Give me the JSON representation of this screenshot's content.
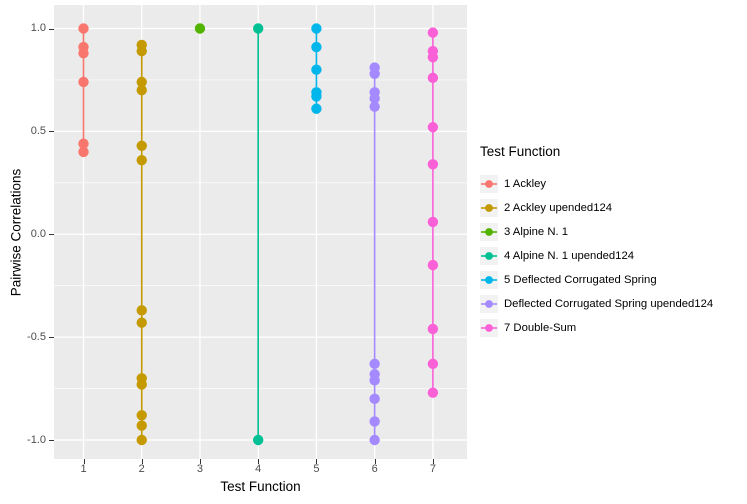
{
  "chart_data": {
    "type": "scatter",
    "title": "",
    "xlabel": "Test Function",
    "ylabel": "Pairwise Correlations",
    "x_categories": [
      "1",
      "2",
      "3",
      "4",
      "5",
      "6",
      "7"
    ],
    "ylim": [
      -1.1,
      1.1
    ],
    "yticks": [
      1.0,
      0.5,
      0.0,
      -0.5,
      -1.0
    ],
    "ytick_labels": [
      "1.0",
      "0.5",
      "0.0",
      "-0.5",
      "-1.0"
    ],
    "yminor": [
      0.75,
      0.25,
      -0.25,
      -0.75
    ],
    "grid": "on",
    "panel_background": "#EBEBEB",
    "gridline_color": "#FFFFFF",
    "tick_label_color": "#4D4D4D",
    "legend_position": "right",
    "series": [
      {
        "name": "1 Ackley",
        "x": 1,
        "color": "#F8766D",
        "values": [
          1.0,
          0.91,
          0.88,
          0.74,
          0.44,
          0.4
        ]
      },
      {
        "name": "2 Ackley upended124",
        "x": 2,
        "color": "#C49A00",
        "values": [
          0.92,
          0.89,
          0.74,
          0.7,
          0.43,
          0.36,
          -0.37,
          -0.43,
          -0.7,
          -0.73,
          -0.88,
          -0.93,
          -1.0
        ]
      },
      {
        "name": "3 Alpine N. 1",
        "x": 3,
        "color": "#53B400",
        "values": [
          1.0
        ]
      },
      {
        "name": "4 Alpine N. 1 upended124",
        "x": 4,
        "color": "#00C094",
        "values": [
          1.0,
          -1.0
        ]
      },
      {
        "name": "5 Deflected Corrugated Spring",
        "x": 5,
        "color": "#00B6EB",
        "values": [
          1.0,
          0.91,
          0.8,
          0.69,
          0.67,
          0.61
        ]
      },
      {
        "name": "Deflected Corrugated Spring upended124",
        "x": 6,
        "color": "#A58AFF",
        "values": [
          0.81,
          0.78,
          0.69,
          0.66,
          0.62,
          -0.63,
          -0.68,
          -0.71,
          -0.8,
          -0.91,
          -1.0
        ]
      },
      {
        "name": "7 Double-Sum",
        "x": 7,
        "color": "#FB61D7",
        "values": [
          0.98,
          0.89,
          0.86,
          0.76,
          0.52,
          0.34,
          0.06,
          -0.15,
          -0.46,
          -0.63,
          -0.77
        ]
      }
    ]
  },
  "legend": {
    "title": "Test Function",
    "items": [
      {
        "label": "1 Ackley",
        "color": "#F8766D"
      },
      {
        "label": "2 Ackley upended124",
        "color": "#C49A00"
      },
      {
        "label": "3 Alpine N. 1",
        "color": "#53B400"
      },
      {
        "label": "4 Alpine N. 1 upended124",
        "color": "#00C094"
      },
      {
        "label": "5 Deflected Corrugated Spring",
        "color": "#00B6EB"
      },
      {
        "label": "Deflected Corrugated Spring upended124",
        "color": "#A58AFF"
      },
      {
        "label": "7 Double-Sum",
        "color": "#FB61D7"
      }
    ]
  }
}
